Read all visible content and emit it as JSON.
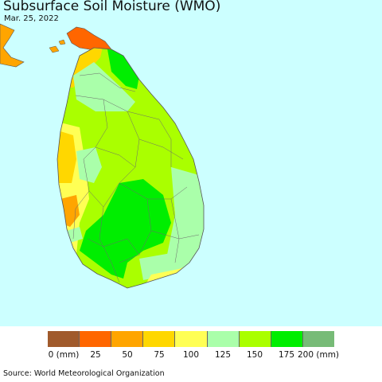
{
  "header": {
    "title": "Subsurface Soil Moisture (WMO)",
    "date": "Mar. 25, 2022"
  },
  "map": {
    "region": "Sri Lanka",
    "ocean_color": "#ccffff",
    "border_color": "#6b6b6b"
  },
  "legend": {
    "bins": [
      {
        "color": "#a05a2c"
      },
      {
        "color": "#ff6600"
      },
      {
        "color": "#ffa500"
      },
      {
        "color": "#ffd700"
      },
      {
        "color": "#ffff55"
      },
      {
        "color": "#aaffaa"
      },
      {
        "color": "#aaff00"
      },
      {
        "color": "#00ee00"
      },
      {
        "color": "#77bb77"
      }
    ],
    "labels": [
      "0 (mm)",
      "25",
      "50",
      "75",
      "100",
      "125",
      "150",
      "175",
      "200 (mm)"
    ]
  },
  "footer": {
    "source": "Source: World Meteorological Organization"
  }
}
